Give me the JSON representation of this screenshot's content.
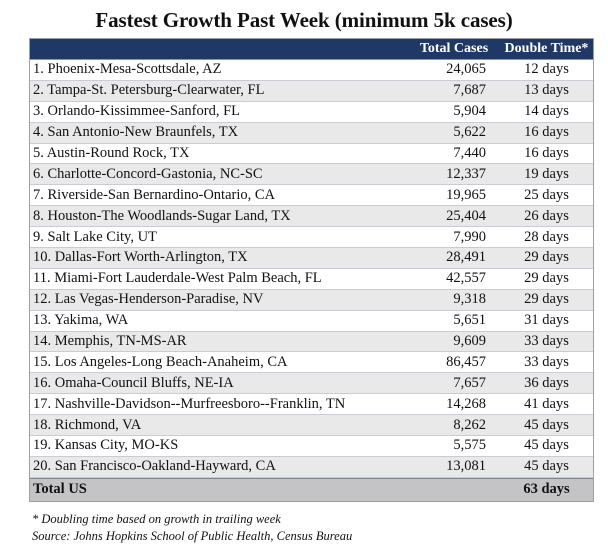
{
  "title": "Fastest Growth Past Week (minimum 5k cases)",
  "header": {
    "name": "",
    "total_cases": "Total Cases",
    "double_time": "Double Time*"
  },
  "rows": [
    {
      "name": "1. Phoenix-Mesa-Scottsdale, AZ",
      "cases": "24,065",
      "double": "12 days"
    },
    {
      "name": "2. Tampa-St. Petersburg-Clearwater, FL",
      "cases": "7,687",
      "double": "13 days"
    },
    {
      "name": "3. Orlando-Kissimmee-Sanford, FL",
      "cases": "5,904",
      "double": "14 days"
    },
    {
      "name": "4. San Antonio-New Braunfels, TX",
      "cases": "5,622",
      "double": "16 days"
    },
    {
      "name": "5. Austin-Round Rock, TX",
      "cases": "7,440",
      "double": "16 days"
    },
    {
      "name": "6. Charlotte-Concord-Gastonia, NC-SC",
      "cases": "12,337",
      "double": "19 days"
    },
    {
      "name": "7. Riverside-San Bernardino-Ontario, CA",
      "cases": "19,965",
      "double": "25 days"
    },
    {
      "name": "8. Houston-The Woodlands-Sugar Land, TX",
      "cases": "25,404",
      "double": "26 days"
    },
    {
      "name": "9. Salt Lake City, UT",
      "cases": "7,990",
      "double": "28 days"
    },
    {
      "name": "10. Dallas-Fort Worth-Arlington, TX",
      "cases": "28,491",
      "double": "29 days"
    },
    {
      "name": "11. Miami-Fort Lauderdale-West Palm Beach, FL",
      "cases": "42,557",
      "double": "29 days"
    },
    {
      "name": "12. Las Vegas-Henderson-Paradise, NV",
      "cases": "9,318",
      "double": "29 days"
    },
    {
      "name": "13. Yakima, WA",
      "cases": "5,651",
      "double": "31 days"
    },
    {
      "name": "14. Memphis, TN-MS-AR",
      "cases": "9,609",
      "double": "33 days"
    },
    {
      "name": "15. Los Angeles-Long Beach-Anaheim, CA",
      "cases": "86,457",
      "double": "33 days"
    },
    {
      "name": "16. Omaha-Council Bluffs, NE-IA",
      "cases": "7,657",
      "double": "36 days"
    },
    {
      "name": "17. Nashville-Davidson--Murfreesboro--Franklin, TN",
      "cases": "14,268",
      "double": "41 days"
    },
    {
      "name": "18. Richmond, VA",
      "cases": "8,262",
      "double": "45 days"
    },
    {
      "name": "19. Kansas City, MO-KS",
      "cases": "5,575",
      "double": "45 days"
    },
    {
      "name": "20. San Francisco-Oakland-Hayward, CA",
      "cases": "13,081",
      "double": "45 days"
    }
  ],
  "total": {
    "name": "Total US",
    "cases": "",
    "double": "63 days"
  },
  "notes": {
    "footnote": "* Doubling time based on growth in trailing week",
    "source": "Source: Johns Hopkins School of Public Health, Census Bureau"
  },
  "colors": {
    "header_bg": "#1f3866",
    "header_text": "#ffffff",
    "alt_row_bg": "#e9e9ea",
    "total_row_bg": "#c4c4c6"
  }
}
